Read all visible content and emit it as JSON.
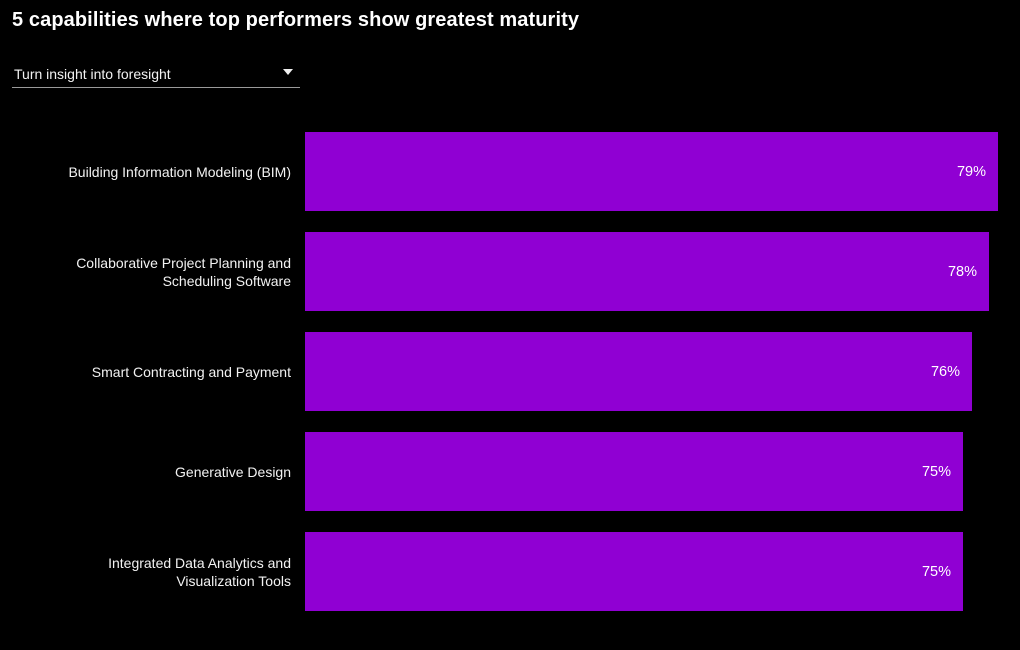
{
  "title": "5 capabilities where top performers show greatest maturity",
  "dropdown": {
    "selected": "Turn insight into foresight"
  },
  "chart_data": {
    "type": "bar",
    "orientation": "horizontal",
    "title": "5 capabilities where top performers show greatest maturity",
    "categories": [
      "Building Information Modeling (BIM)",
      "Collaborative Project Planning and Scheduling Software",
      "Smart Contracting and Payment",
      "Generative Design",
      "Integrated Data Analytics and Visualization Tools"
    ],
    "values": [
      79,
      78,
      76,
      75,
      75
    ],
    "value_labels": [
      "79%",
      "78%",
      "76%",
      "75%",
      "75%"
    ],
    "unit": "%",
    "bar_color": "#9000D3",
    "background_color": "#000000",
    "text_color": "#f2f2f2",
    "value_label_color": "#ffffff",
    "grid": false,
    "legend": false,
    "axis_ticks_visible": false
  }
}
